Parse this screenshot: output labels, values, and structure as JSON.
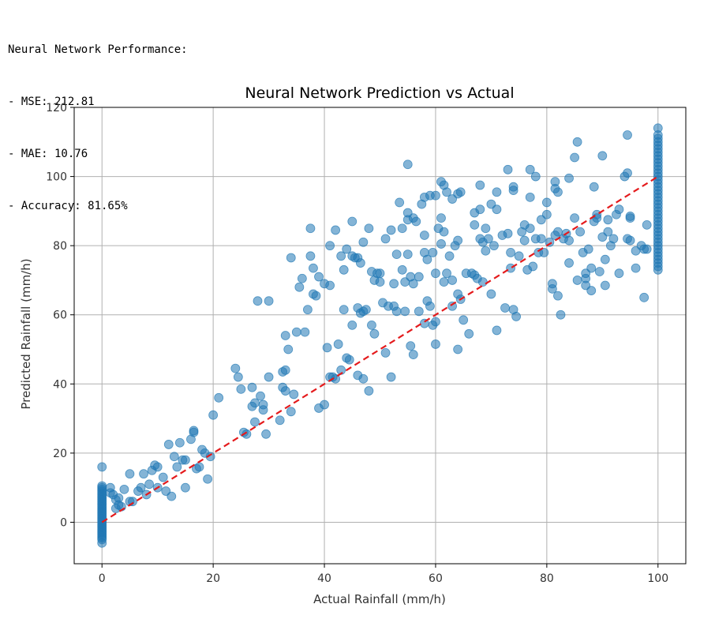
{
  "output": {
    "lines": [
      "Neural Network Performance:",
      "- MSE: 212.81",
      "- MAE: 10.76",
      "- Accuracy: 81.65%"
    ]
  },
  "chart_data": {
    "type": "scatter",
    "title": "Neural Network Prediction vs Actual",
    "xlabel": "Actual Rainfall (mm/h)",
    "ylabel": "Predicted Rainfall (mm/h)",
    "xlim": [
      -5,
      105
    ],
    "ylim": [
      -12,
      120
    ],
    "xticks": [
      0,
      20,
      40,
      60,
      80,
      100
    ],
    "yticks": [
      0,
      20,
      40,
      60,
      80,
      100,
      120
    ],
    "grid": true,
    "point_color": "#1f77b4",
    "reference_line": {
      "x": [
        0,
        100
      ],
      "y": [
        0,
        100
      ],
      "color": "#e41a1c",
      "style": "dashed"
    },
    "points": [
      [
        0,
        -6
      ],
      [
        0,
        -5
      ],
      [
        0,
        -4.5
      ],
      [
        0,
        -4
      ],
      [
        0,
        -3.5
      ],
      [
        0,
        -3
      ],
      [
        0,
        -2.5
      ],
      [
        0,
        -2
      ],
      [
        0,
        -1.5
      ],
      [
        0,
        -1
      ],
      [
        0,
        -0.5
      ],
      [
        0,
        0
      ],
      [
        0,
        0.5
      ],
      [
        0,
        1
      ],
      [
        0,
        1.5
      ],
      [
        0,
        2
      ],
      [
        0,
        2.5
      ],
      [
        0,
        3
      ],
      [
        0,
        3.5
      ],
      [
        0,
        4
      ],
      [
        0,
        4.5
      ],
      [
        0,
        5
      ],
      [
        0,
        5.5
      ],
      [
        0,
        6
      ],
      [
        0,
        6.5
      ],
      [
        0,
        7
      ],
      [
        0,
        7.5
      ],
      [
        0,
        8
      ],
      [
        0,
        8.5
      ],
      [
        0,
        9
      ],
      [
        0,
        9.5
      ],
      [
        0,
        10
      ],
      [
        0,
        10.5
      ],
      [
        0,
        16
      ],
      [
        1.5,
        10
      ],
      [
        1.5,
        8.5
      ],
      [
        2,
        8
      ],
      [
        2.5,
        6.5
      ],
      [
        2.5,
        4
      ],
      [
        3,
        7
      ],
      [
        3,
        5
      ],
      [
        3.5,
        4.5
      ],
      [
        4,
        9.5
      ],
      [
        5,
        14
      ],
      [
        5,
        6
      ],
      [
        5.5,
        6
      ],
      [
        6.5,
        9
      ],
      [
        7,
        10
      ],
      [
        7.5,
        14
      ],
      [
        8,
        8
      ],
      [
        8.5,
        11
      ],
      [
        9,
        15
      ],
      [
        9.5,
        16.5
      ],
      [
        10,
        10
      ],
      [
        10,
        16
      ],
      [
        11,
        13
      ],
      [
        11.5,
        9
      ],
      [
        12,
        22.5
      ],
      [
        12.5,
        7.5
      ],
      [
        13,
        19
      ],
      [
        13.5,
        16
      ],
      [
        14,
        23
      ],
      [
        14.5,
        18
      ],
      [
        15,
        10
      ],
      [
        15,
        18
      ],
      [
        16,
        24
      ],
      [
        16.5,
        26
      ],
      [
        16.5,
        26.5
      ],
      [
        17,
        15.5
      ],
      [
        17.5,
        16
      ],
      [
        18,
        21
      ],
      [
        18.5,
        20
      ],
      [
        19,
        12.5
      ],
      [
        19.5,
        19
      ],
      [
        20,
        31
      ],
      [
        21,
        36
      ],
      [
        24,
        44.5
      ],
      [
        24.5,
        42
      ],
      [
        25,
        38.5
      ],
      [
        25.5,
        26
      ],
      [
        26,
        25.5
      ],
      [
        27,
        33.5
      ],
      [
        27,
        39
      ],
      [
        27.5,
        34.5
      ],
      [
        27.5,
        29
      ],
      [
        28,
        64
      ],
      [
        28.5,
        36.5
      ],
      [
        29,
        34
      ],
      [
        29,
        32.5
      ],
      [
        29.5,
        25.5
      ],
      [
        30,
        42
      ],
      [
        30,
        64
      ],
      [
        32,
        29.5
      ],
      [
        32.5,
        39
      ],
      [
        32.5,
        43.5
      ],
      [
        33,
        38
      ],
      [
        33,
        44
      ],
      [
        33,
        54
      ],
      [
        33.5,
        50
      ],
      [
        34,
        32
      ],
      [
        34,
        76.5
      ],
      [
        34.5,
        37
      ],
      [
        35,
        55
      ],
      [
        35.5,
        68
      ],
      [
        36,
        70.5
      ],
      [
        36.5,
        55
      ],
      [
        37,
        61.5
      ],
      [
        37.5,
        77
      ],
      [
        37.5,
        85
      ],
      [
        38,
        73.5
      ],
      [
        38,
        66
      ],
      [
        38.5,
        65.5
      ],
      [
        39,
        33
      ],
      [
        39,
        71
      ],
      [
        40,
        34
      ],
      [
        40.5,
        50.5
      ],
      [
        40,
        69
      ],
      [
        41,
        68.5
      ],
      [
        41,
        80
      ],
      [
        41,
        42
      ],
      [
        41.5,
        42
      ],
      [
        42,
        84.5
      ],
      [
        42,
        41.5
      ],
      [
        42.5,
        51.5
      ],
      [
        43,
        77
      ],
      [
        43,
        44
      ],
      [
        43.5,
        73
      ],
      [
        43.5,
        61.5
      ],
      [
        44,
        79
      ],
      [
        44,
        47.5
      ],
      [
        44.5,
        47
      ],
      [
        45,
        77
      ],
      [
        45,
        87
      ],
      [
        45,
        57
      ],
      [
        45.5,
        76.5
      ],
      [
        46,
        76.5
      ],
      [
        46,
        62
      ],
      [
        46,
        42.5
      ],
      [
        46.5,
        60.5
      ],
      [
        46.5,
        75
      ],
      [
        47,
        61
      ],
      [
        47,
        41.5
      ],
      [
        47,
        81
      ],
      [
        47.5,
        61.5
      ],
      [
        48,
        85
      ],
      [
        48,
        38
      ],
      [
        48.5,
        57
      ],
      [
        48.5,
        72.5
      ],
      [
        49,
        70
      ],
      [
        49,
        54.5
      ],
      [
        49.5,
        72
      ],
      [
        50,
        69.5
      ],
      [
        50,
        72
      ],
      [
        50.5,
        63.5
      ],
      [
        51,
        82
      ],
      [
        51,
        49
      ],
      [
        51.5,
        62.5
      ],
      [
        52,
        84.5
      ],
      [
        52,
        42
      ],
      [
        52.5,
        69
      ],
      [
        52.5,
        62.5
      ],
      [
        53,
        77.5
      ],
      [
        53,
        61
      ],
      [
        53.5,
        92.5
      ],
      [
        54,
        73
      ],
      [
        54,
        85
      ],
      [
        54.5,
        61
      ],
      [
        54.5,
        69.5
      ],
      [
        55,
        89.5
      ],
      [
        55,
        87.5
      ],
      [
        55,
        77.5
      ],
      [
        55,
        103.5
      ],
      [
        55.5,
        51
      ],
      [
        55.5,
        71
      ],
      [
        56,
        69
      ],
      [
        56,
        48.5
      ],
      [
        56,
        88
      ],
      [
        56.5,
        87
      ],
      [
        57,
        71
      ],
      [
        57,
        61
      ],
      [
        57.5,
        92
      ],
      [
        58,
        94
      ],
      [
        58,
        83
      ],
      [
        58,
        78
      ],
      [
        58,
        57.5
      ],
      [
        58.5,
        64
      ],
      [
        58.5,
        76
      ],
      [
        59,
        62.5
      ],
      [
        59,
        94.5
      ],
      [
        59.5,
        78
      ],
      [
        59.5,
        57
      ],
      [
        60,
        94.5
      ],
      [
        60,
        72
      ],
      [
        60,
        51.5
      ],
      [
        60,
        58
      ],
      [
        60.5,
        85
      ],
      [
        61,
        88
      ],
      [
        61,
        98.5
      ],
      [
        61,
        80.5
      ],
      [
        61.5,
        69.5
      ],
      [
        61.5,
        97.5
      ],
      [
        61.5,
        84
      ],
      [
        62,
        95.5
      ],
      [
        62,
        72
      ],
      [
        62.5,
        77
      ],
      [
        63,
        70
      ],
      [
        63,
        93.5
      ],
      [
        63,
        62.5
      ],
      [
        63.5,
        80
      ],
      [
        64,
        95
      ],
      [
        64,
        81.5
      ],
      [
        64,
        66
      ],
      [
        64,
        50
      ],
      [
        64.5,
        64.5
      ],
      [
        64.5,
        95.5
      ],
      [
        65,
        58.5
      ],
      [
        65.5,
        72
      ],
      [
        66,
        54.5
      ],
      [
        66.5,
        72
      ],
      [
        67,
        89.5
      ],
      [
        67,
        86
      ],
      [
        67,
        71.5
      ],
      [
        67.5,
        70.5
      ],
      [
        68,
        82
      ],
      [
        68,
        90.5
      ],
      [
        68,
        97.5
      ],
      [
        68.5,
        81
      ],
      [
        68.5,
        69.5
      ],
      [
        69,
        78.5
      ],
      [
        69,
        85
      ],
      [
        69.5,
        82
      ],
      [
        70,
        92
      ],
      [
        70,
        66
      ],
      [
        70.5,
        80
      ],
      [
        71,
        95.5
      ],
      [
        71,
        90.5
      ],
      [
        71,
        55.5
      ],
      [
        72,
        83
      ],
      [
        72.5,
        62
      ],
      [
        73,
        83.5
      ],
      [
        73,
        102
      ],
      [
        73.5,
        73.5
      ],
      [
        73.5,
        78
      ],
      [
        74,
        97
      ],
      [
        74,
        61.5
      ],
      [
        74,
        96
      ],
      [
        74.5,
        59.5
      ],
      [
        75,
        77
      ],
      [
        75.5,
        84
      ],
      [
        76,
        81.5
      ],
      [
        76,
        86
      ],
      [
        76.5,
        73
      ],
      [
        77,
        102
      ],
      [
        77,
        94
      ],
      [
        77,
        85
      ],
      [
        77.5,
        74
      ],
      [
        78,
        100
      ],
      [
        78,
        82
      ],
      [
        78.5,
        78
      ],
      [
        79,
        82
      ],
      [
        79,
        87.5
      ],
      [
        79.5,
        78
      ],
      [
        80,
        92.5
      ],
      [
        80,
        89
      ],
      [
        80.5,
        81
      ],
      [
        81,
        69
      ],
      [
        81,
        67.5
      ],
      [
        81.5,
        83
      ],
      [
        81.5,
        98.5
      ],
      [
        81.5,
        96.5
      ],
      [
        82,
        84
      ],
      [
        82,
        65.5
      ],
      [
        82,
        95.5
      ],
      [
        82.5,
        60
      ],
      [
        83,
        82
      ],
      [
        83.5,
        83.5
      ],
      [
        84,
        99.5
      ],
      [
        84,
        81.5
      ],
      [
        84,
        75
      ],
      [
        85,
        88
      ],
      [
        85,
        105.5
      ],
      [
        85.5,
        110
      ],
      [
        85.5,
        70
      ],
      [
        86,
        84
      ],
      [
        86.5,
        78
      ],
      [
        87,
        72
      ],
      [
        87,
        70.5
      ],
      [
        87,
        68.5
      ],
      [
        87.5,
        79
      ],
      [
        88,
        73.5
      ],
      [
        88,
        67
      ],
      [
        88.5,
        87
      ],
      [
        88.5,
        97
      ],
      [
        89,
        89
      ],
      [
        89,
        88
      ],
      [
        89.5,
        72.5
      ],
      [
        90,
        106
      ],
      [
        90,
        82.5
      ],
      [
        90.5,
        68.5
      ],
      [
        90.5,
        76
      ],
      [
        91,
        84
      ],
      [
        91,
        87.5
      ],
      [
        91.5,
        80
      ],
      [
        92,
        82
      ],
      [
        92.5,
        89
      ],
      [
        93,
        72
      ],
      [
        93,
        90.5
      ],
      [
        94,
        100
      ],
      [
        94.5,
        101
      ],
      [
        94.5,
        112
      ],
      [
        94.5,
        82
      ],
      [
        95,
        81.5
      ],
      [
        95,
        88.5
      ],
      [
        95,
        88
      ],
      [
        96,
        78.5
      ],
      [
        96,
        73.5
      ],
      [
        97,
        80
      ],
      [
        97.5,
        79
      ],
      [
        97.5,
        65
      ],
      [
        98,
        79
      ],
      [
        98,
        86
      ],
      [
        100,
        73
      ],
      [
        100,
        74
      ],
      [
        100,
        75
      ],
      [
        100,
        76
      ],
      [
        100,
        77
      ],
      [
        100,
        78
      ],
      [
        100,
        79
      ],
      [
        100,
        80
      ],
      [
        100,
        81
      ],
      [
        100,
        82
      ],
      [
        100,
        83
      ],
      [
        100,
        84
      ],
      [
        100,
        85
      ],
      [
        100,
        86
      ],
      [
        100,
        87
      ],
      [
        100,
        88
      ],
      [
        100,
        89
      ],
      [
        100,
        90
      ],
      [
        100,
        91
      ],
      [
        100,
        92
      ],
      [
        100,
        93
      ],
      [
        100,
        94
      ],
      [
        100,
        95
      ],
      [
        100,
        96
      ],
      [
        100,
        97
      ],
      [
        100,
        98
      ],
      [
        100,
        99
      ],
      [
        100,
        100
      ],
      [
        100,
        101
      ],
      [
        100,
        102
      ],
      [
        100,
        103
      ],
      [
        100,
        104
      ],
      [
        100,
        105
      ],
      [
        100,
        106
      ],
      [
        100,
        107
      ],
      [
        100,
        108
      ],
      [
        100,
        109
      ],
      [
        100,
        110
      ],
      [
        100,
        111
      ],
      [
        100,
        112
      ],
      [
        100,
        114
      ]
    ]
  }
}
